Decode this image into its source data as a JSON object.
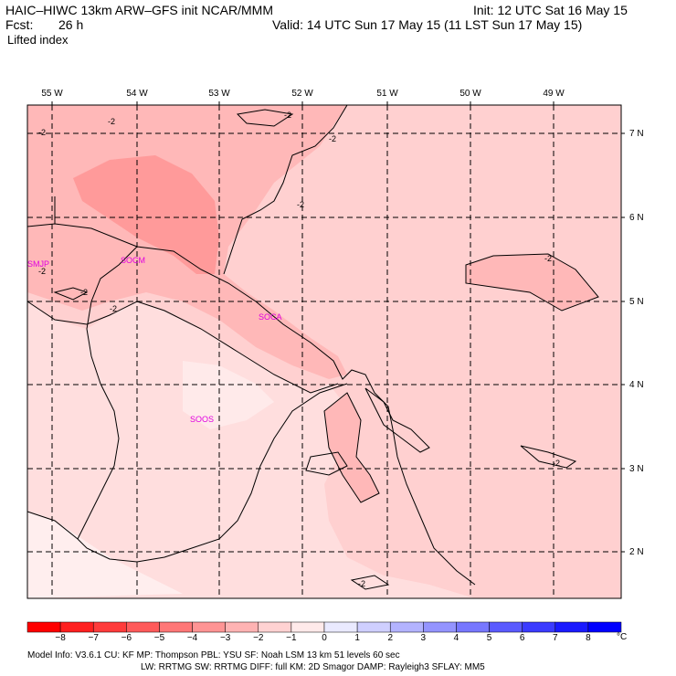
{
  "header": {
    "title": "HAIC–HIWC 13km ARW–GFS init   NCAR/MMM",
    "init": "Init: 12 UTC Sat 16 May 15",
    "fcst_label": "Fcst:",
    "fcst_value": "26 h",
    "valid": "Valid: 14 UTC Sun 17 May 15 (11 LST Sun 17 May 15)",
    "field": "Lifted index"
  },
  "map": {
    "longitudes": [
      "55 W",
      "54 W",
      "53 W",
      "52 W",
      "51 W",
      "50 W",
      "49 W"
    ],
    "latitudes": [
      "7 N",
      "6 N",
      "5 N",
      "4 N",
      "3 N",
      "2 N"
    ],
    "stations": [
      "SMJP",
      "SOCM",
      "SOCA",
      "SOOS"
    ],
    "contour_label": "-2",
    "colors": {
      "land_outline": "#000000",
      "grid": "#000000",
      "station": "#e000e0"
    }
  },
  "colorbar": {
    "labels": [
      "−8",
      "−7",
      "−6",
      "−5",
      "−4",
      "−3",
      "−2",
      "−1",
      "0",
      "1",
      "2",
      "3",
      "4",
      "5",
      "6",
      "7",
      "8"
    ],
    "unit": "°C",
    "colors": [
      "#ff0000",
      "#ff2020",
      "#ff3b3b",
      "#ff5a5a",
      "#ff7777",
      "#ff9494",
      "#ffb3b3",
      "#ffd2d2",
      "#ffeaea",
      "#eaeaff",
      "#cfcfff",
      "#b3b3ff",
      "#9494ff",
      "#7777ff",
      "#5a5aff",
      "#3b3bff",
      "#1a1aff",
      "#0000ff"
    ]
  },
  "footer": {
    "line1": "Model Info: V3.6.1    CU: KF      MP: Thompson     PBL: YSU      SF: Noah LSM    13 km   51 levels   60 sec",
    "line2": "LW: RRTMG    SW: RRTMG   DIFF: full    KM: 2D Smagor DAMP: Rayleigh3   SFLAY: MM5"
  }
}
